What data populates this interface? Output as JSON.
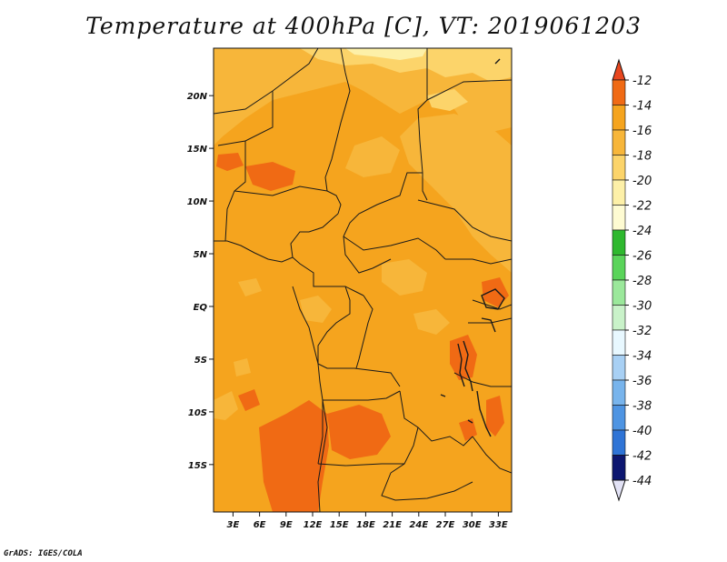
{
  "title": "Temperature at 400hPa [C], VT: 2019061203",
  "credit": "GrADS: IGES/COLA",
  "map": {
    "lat_labels": [
      {
        "lat": 20,
        "label": "20N"
      },
      {
        "lat": 15,
        "label": "15N"
      },
      {
        "lat": 10,
        "label": "10N"
      },
      {
        "lat": 5,
        "label": "5N"
      },
      {
        "lat": 0,
        "label": "EQ"
      },
      {
        "lat": -5,
        "label": "5S"
      },
      {
        "lat": -10,
        "label": "10S"
      },
      {
        "lat": -15,
        "label": "15S"
      }
    ],
    "lon_labels": [
      {
        "lon": 3,
        "label": "3E"
      },
      {
        "lon": 6,
        "label": "6E"
      },
      {
        "lon": 9,
        "label": "9E"
      },
      {
        "lon": 12,
        "label": "12E"
      },
      {
        "lon": 15,
        "label": "15E"
      },
      {
        "lon": 18,
        "label": "18E"
      },
      {
        "lon": 21,
        "label": "21E"
      },
      {
        "lon": 24,
        "label": "24E"
      },
      {
        "lon": 27,
        "label": "27E"
      },
      {
        "lon": 30,
        "label": "30E"
      },
      {
        "lon": 33,
        "label": "33E"
      }
    ],
    "base_color": "#f5a41e"
  },
  "colorbar": {
    "levels": [
      {
        "label": "-12",
        "color": "#f06a14"
      },
      {
        "label": "-14",
        "color": "#f5a41e"
      },
      {
        "label": "-16",
        "color": "#f7b63a"
      },
      {
        "label": "-18",
        "color": "#fcd46a"
      },
      {
        "label": "-20",
        "color": "#fdf0a8"
      },
      {
        "label": "-22",
        "color": "#fefbd2"
      },
      {
        "label": "-24",
        "color": "#2eb82e"
      },
      {
        "label": "-26",
        "color": "#5ad45a"
      },
      {
        "label": "-28",
        "color": "#9be89b"
      },
      {
        "label": "-30",
        "color": "#c9f2c9"
      },
      {
        "label": "-32",
        "color": "#e8f8ff"
      },
      {
        "label": "-34",
        "color": "#a8d0f4"
      },
      {
        "label": "-36",
        "color": "#78b4ec"
      },
      {
        "label": "-38",
        "color": "#4e94e2"
      },
      {
        "label": "-40",
        "color": "#2f74d6"
      },
      {
        "label": "-42",
        "color": "#1c54c0"
      },
      {
        "label": "-44",
        "color": "#0e2e9a"
      }
    ],
    "top_color": "#e8461e",
    "bottom_color": "#0c1670",
    "below_color": "#e2e2f5"
  }
}
